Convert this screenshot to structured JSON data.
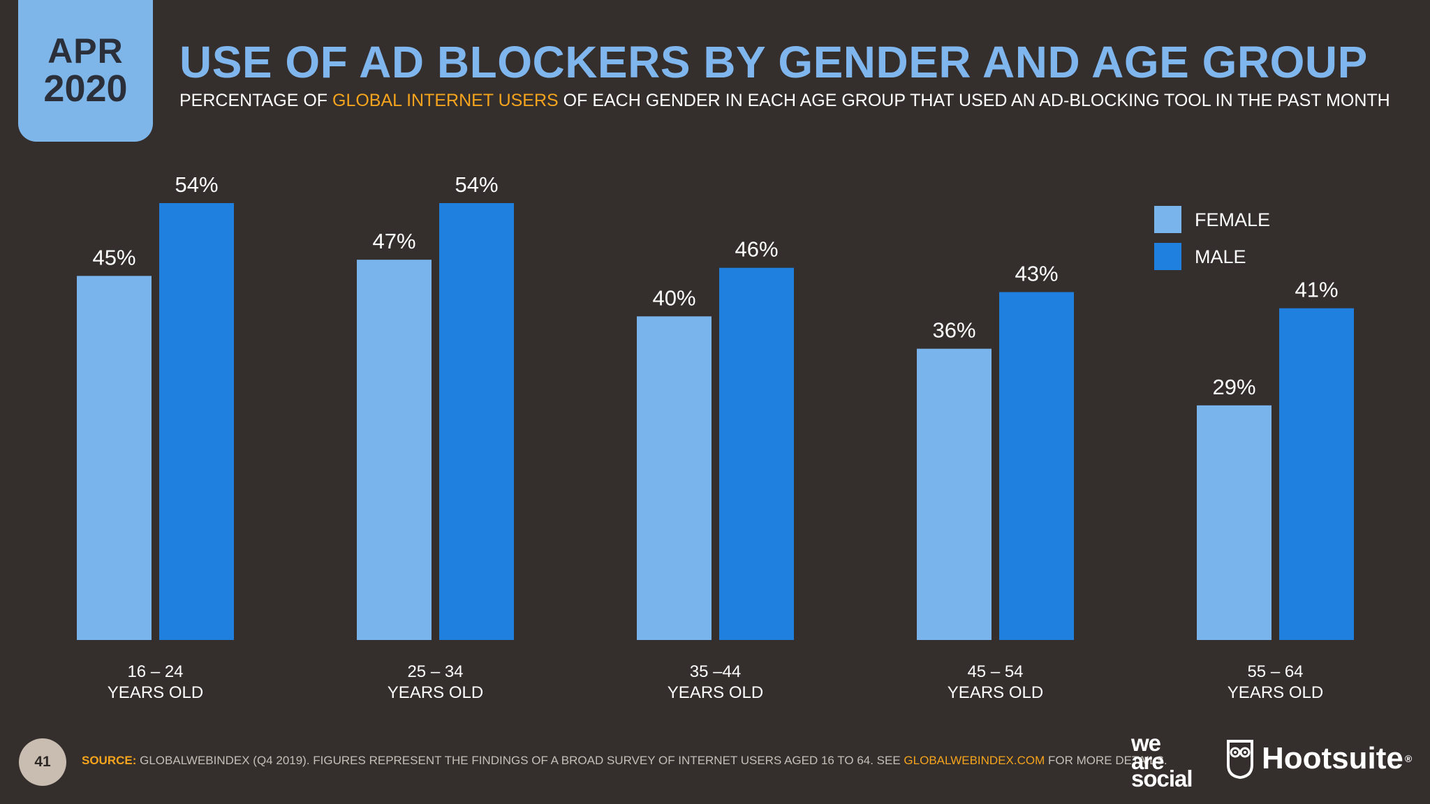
{
  "badge": {
    "month": "APR",
    "year": "2020"
  },
  "title": "USE OF AD BLOCKERS BY GENDER AND AGE GROUP",
  "subtitle": {
    "pre": "PERCENTAGE OF ",
    "highlight": "GLOBAL INTERNET USERS",
    "post": " OF EACH GENDER IN EACH AGE GROUP THAT USED AN AD-BLOCKING TOOL IN THE PAST MONTH"
  },
  "colors": {
    "female": "#79b4ec",
    "male": "#1f80e0",
    "accent": "#f5a41d",
    "title": "#80b6ee",
    "background": "#342e2c"
  },
  "chart_data": {
    "type": "bar",
    "title": "USE OF AD BLOCKERS BY GENDER AND AGE GROUP",
    "categories": [
      [
        "16 – 24",
        "YEARS OLD"
      ],
      [
        "25 – 34",
        "YEARS OLD"
      ],
      [
        "35 –44",
        "YEARS OLD"
      ],
      [
        "45 – 54",
        "YEARS OLD"
      ],
      [
        "55 – 64",
        "YEARS OLD"
      ]
    ],
    "series": [
      {
        "name": "FEMALE",
        "values": [
          45,
          47,
          40,
          36,
          29
        ],
        "labels": [
          "45%",
          "47%",
          "40%",
          "36%",
          "29%"
        ]
      },
      {
        "name": "MALE",
        "values": [
          54,
          54,
          46,
          43,
          41
        ],
        "labels": [
          "54%",
          "54%",
          "46%",
          "43%",
          "41%"
        ]
      }
    ],
    "legend_position": "top-right",
    "ylim": [
      0,
      54
    ],
    "xlabel": "",
    "ylabel": "",
    "grid": false
  },
  "footer": {
    "page_number": "41",
    "source_label": "SOURCE:",
    "source_text": " GLOBALWEBINDEX (Q4 2019). FIGURES REPRESENT THE FINDINGS OF A BROAD SURVEY OF INTERNET USERS AGED 16 TO 64. SEE ",
    "source_link": "GLOBALWEBINDEX.COM",
    "source_end": " FOR MORE DETAILS."
  },
  "logos": {
    "we_are_social": [
      "we",
      "are",
      "social"
    ],
    "hootsuite": "Hootsuite",
    "registered": "®"
  }
}
